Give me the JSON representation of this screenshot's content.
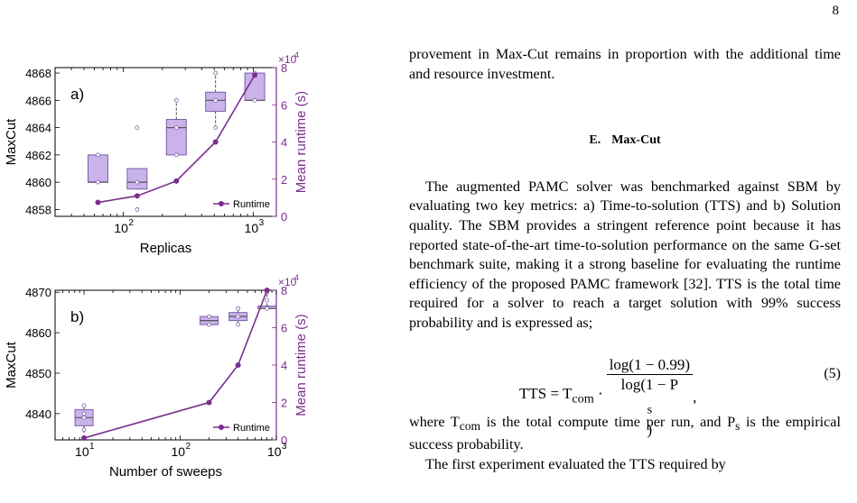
{
  "page_number": "8",
  "colors": {
    "box_fill": "#c9b3ea",
    "box_edge": "#7a5fa8",
    "runtime": "#7b2d8e",
    "median": "#555555"
  },
  "chart_data": [
    {
      "type": "box+line",
      "panel_label": "a)",
      "xlabel": "Replicas",
      "ylabel_left": "MaxCut",
      "ylabel_right": "Mean runtime (s)",
      "right_multiplier": "×10",
      "right_multiplier_exp": "4",
      "x_scale": "log",
      "x_ticks": [
        {
          "value": 100,
          "base": "10",
          "exp": "2"
        },
        {
          "value": 1000,
          "base": "10",
          "exp": "3"
        }
      ],
      "left_ylim": [
        4857.5,
        4868.4
      ],
      "left_ticks": [
        "4858",
        "4860",
        "4862",
        "4864",
        "4866",
        "4868"
      ],
      "right_ylim": [
        0,
        80000
      ],
      "right_ticks": [
        "0",
        "2",
        "4",
        "6",
        "8"
      ],
      "boxes": [
        {
          "x": 64,
          "q1": 4860,
          "median": 4860,
          "q3": 4862,
          "points": [
            4860,
            4862
          ]
        },
        {
          "x": 128,
          "q1": 4859.5,
          "median": 4860,
          "q3": 4861,
          "points": [
            4858,
            4860,
            4864
          ]
        },
        {
          "x": 256,
          "q1": 4862,
          "median": 4864,
          "q3": 4864.6,
          "whisker_hi": 4866,
          "points": [
            4862,
            4864,
            4866
          ]
        },
        {
          "x": 512,
          "q1": 4865.2,
          "median": 4866,
          "q3": 4866.6,
          "whisker_lo": 4864,
          "whisker_hi": 4868,
          "points": [
            4864,
            4866,
            4868
          ]
        },
        {
          "x": 1024,
          "q1": 4866,
          "median": 4866,
          "q3": 4868,
          "points": [
            4866,
            4868
          ]
        }
      ],
      "series": [
        {
          "name": "Runtime",
          "x": [
            64,
            128,
            256,
            512,
            1024
          ],
          "y": [
            7500,
            11000,
            19000,
            40000,
            76000
          ]
        }
      ],
      "legend": "bottom-right"
    },
    {
      "type": "box+line",
      "panel_label": "b)",
      "xlabel": "Number of sweeps",
      "ylabel_left": "MaxCut",
      "ylabel_right": "Mean runtime (s)",
      "right_multiplier": "×10",
      "right_multiplier_exp": "4",
      "x_scale": "log",
      "x_ticks": [
        {
          "value": 10,
          "base": "10",
          "exp": "1"
        },
        {
          "value": 100,
          "base": "10",
          "exp": "2"
        },
        {
          "value": 1000,
          "base": "10",
          "exp": "3"
        }
      ],
      "left_ylim": [
        4833.5,
        4870.5
      ],
      "left_ticks": [
        "4840",
        "4850",
        "4860",
        "4870"
      ],
      "right_ylim": [
        0,
        80000
      ],
      "right_ticks": [
        "0",
        "2",
        "4",
        "6",
        "8"
      ],
      "boxes": [
        {
          "x": 10,
          "q1": 4837,
          "median": 4839,
          "q3": 4841,
          "whisker_lo": 4835,
          "whisker_hi": 4842,
          "points": [
            4836,
            4839,
            4840,
            4842
          ]
        },
        {
          "x": 200,
          "q1": 4862,
          "median": 4863,
          "q3": 4864,
          "points": [
            4862,
            4864
          ]
        },
        {
          "x": 400,
          "q1": 4863,
          "median": 4864,
          "q3": 4865,
          "whisker_lo": 4862,
          "whisker_hi": 4866,
          "points": [
            4862,
            4864,
            4866
          ]
        },
        {
          "x": 800,
          "q1": 4866,
          "median": 4866,
          "q3": 4866.6,
          "whisker_hi": 4870,
          "points": [
            4866,
            4868,
            4870
          ]
        }
      ],
      "series": [
        {
          "name": "Runtime",
          "x": [
            10,
            200,
            400,
            800
          ],
          "y": [
            1000,
            20000,
            40000,
            80000
          ]
        }
      ],
      "legend": "bottom-right"
    }
  ],
  "text": {
    "p1": "provement in Max-Cut remains in proportion with the additional time and resource investment.",
    "section_label": "E.",
    "section_title": "Max-Cut",
    "p2": "The augmented PAMC solver was benchmarked against SBM by evaluating two key metrics: a) Time-to-solution (TTS) and b) Solution quality. The SBM provides a stringent reference point because it has reported state-of-the-art time-to-solution performance on the same G-set benchmark suite, making it a strong baseline for evaluating the runtime efficiency of the proposed PAMC framework [32]. TTS is the total time required for a solver to reach a target solution with 99% success probability and is expressed as;",
    "eq_lhs": "TTS = T",
    "eq_sub": "com",
    "eq_dot": " · ",
    "eq_num": "log(1 − 0.99)",
    "eq_den_pre": "log(1 − P",
    "eq_den_sub": "s",
    "eq_den_post": ")",
    "eq_tail": ",",
    "eq_number": "(5)",
    "p3_a": "where T",
    "p3_a_sub": "com",
    "p3_b": " is the total compute time per run, and P",
    "p3_b_sub": "s",
    "p3_c": " is the empirical success probability.",
    "p4": "The first experiment evaluated the TTS required by"
  }
}
